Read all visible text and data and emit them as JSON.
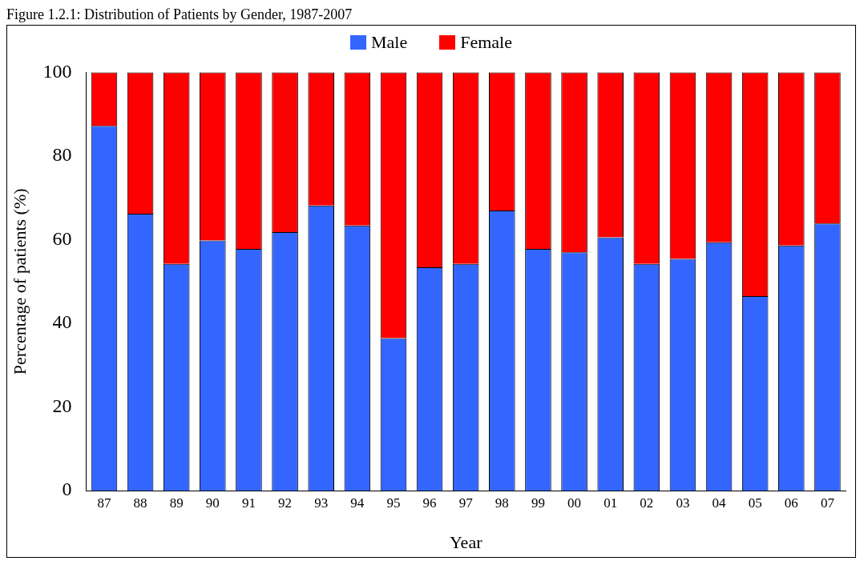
{
  "chart_data": {
    "type": "bar",
    "title": "Figure 1.2.1: Distribution of Patients by Gender, 1987-2007",
    "xlabel": "Year",
    "ylabel": "Percentage of patients (%)",
    "categories": [
      "87",
      "88",
      "89",
      "90",
      "91",
      "92",
      "93",
      "94",
      "95",
      "96",
      "97",
      "98",
      "99",
      "00",
      "01",
      "02",
      "03",
      "04",
      "05",
      "06",
      "07"
    ],
    "series": [
      {
        "name": "Male",
        "color": "#3366ff",
        "values": [
          87.2,
          66.2,
          54.2,
          59.8,
          57.8,
          61.8,
          68.2,
          63.4,
          36.5,
          53.4,
          54.2,
          67.0,
          57.8,
          57.0,
          60.6,
          54.2,
          55.4,
          59.4,
          46.5,
          58.6,
          63.9
        ]
      },
      {
        "name": "Female",
        "color": "#ff0000",
        "values": [
          12.8,
          33.8,
          45.8,
          40.2,
          42.2,
          38.2,
          31.8,
          36.6,
          63.5,
          46.6,
          45.8,
          33.0,
          42.2,
          43.0,
          39.4,
          45.8,
          44.6,
          40.6,
          53.5,
          41.4,
          36.1
        ]
      }
    ],
    "stacked": true,
    "ylim": [
      0,
      100
    ],
    "yticks": [
      0,
      20,
      40,
      60,
      80,
      100
    ],
    "grid": false,
    "legend": "top"
  }
}
